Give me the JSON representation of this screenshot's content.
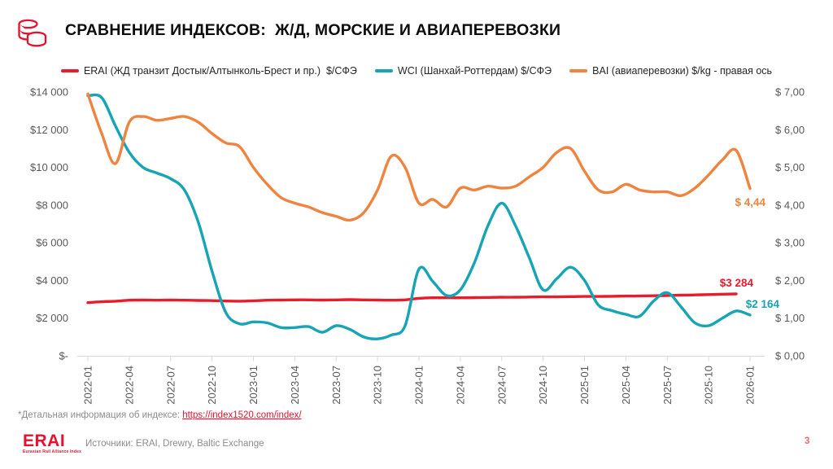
{
  "header": {
    "title": "СРАВНЕНИЕ ИНДЕКСОВ:  Ж/Д, МОРСКИЕ И АВИАПЕРЕВОЗКИ",
    "icon": "coins-icon"
  },
  "colors": {
    "erai_red": "#e71d2c",
    "wci_teal": "#17a4b4",
    "bai_orange": "#ef8440",
    "axis_text": "#595959",
    "grid": "#d9d9d9",
    "brand_red": "#e8112d",
    "page_number_red": "#f0666e"
  },
  "legend": {
    "items": [
      {
        "id": "erai",
        "label": "ERAI (ЖД транзит Достык/Алтынколь-Брест и пр.)  $/СФЭ",
        "color": "#e71d2c"
      },
      {
        "id": "wci",
        "label": "WCI (Шанхай-Роттердам) $/СФЭ",
        "color": "#17a4b4"
      },
      {
        "id": "bai",
        "label": "BAI (авиаперевозки) $/kg - правая ось",
        "color": "#ef8440"
      }
    ]
  },
  "chart_data": {
    "type": "line",
    "title": "СРАВНЕНИЕ ИНДЕКСОВ: Ж/Д, МОРСКИЕ И АВИАПЕРЕВОЗКИ",
    "x": [
      "2022-01",
      "2022-02",
      "2022-03",
      "2022-04",
      "2022-05",
      "2022-06",
      "2022-07",
      "2022-08",
      "2022-09",
      "2022-10",
      "2022-11",
      "2022-12",
      "2023-01",
      "2023-02",
      "2023-03",
      "2023-04",
      "2023-05",
      "2023-06",
      "2023-07",
      "2023-08",
      "2023-09",
      "2023-10",
      "2023-11",
      "2023-12",
      "2024-01",
      "2024-02",
      "2024-03",
      "2024-04",
      "2024-05",
      "2024-06",
      "2024-07",
      "2024-08",
      "2024-09",
      "2024-10",
      "2024-11",
      "2024-12",
      "2025-01",
      "2025-02",
      "2025-03",
      "2025-04",
      "2025-05",
      "2025-06",
      "2025-07",
      "2025-08",
      "2025-09",
      "2025-10",
      "2025-11",
      "2025-12",
      "2026-01"
    ],
    "x_tick_labels": [
      "2022-01",
      "2022-04",
      "2022-07",
      "2022-10",
      "2023-01",
      "2023-04",
      "2023-07",
      "2023-10",
      "2024-01",
      "2024-04",
      "2024-07",
      "2024-10",
      "2025-01",
      "2025-04",
      "2025-07",
      "2025-10",
      "2026-01"
    ],
    "left_axis": {
      "min": 0,
      "max": 14000,
      "labels": [
        "$-",
        "$2 000",
        "$4 000",
        "$6 000",
        "$8 000",
        "$10 000",
        "$12 000",
        "$14 000"
      ]
    },
    "right_axis": {
      "min": 0,
      "max": 7,
      "labels": [
        "$ 0,00",
        "$ 1,00",
        "$ 2,00",
        "$ 3,00",
        "$ 4,00",
        "$ 5,00",
        "$ 6,00",
        "$ 7,00"
      ]
    },
    "legend_position": "top",
    "grid": "off",
    "series": [
      {
        "name": "ERAI (ЖД транзит Достык/Алтынколь-Брест и пр.) $/СФЭ",
        "axis": "left",
        "color": "#e71d2c",
        "values": [
          2820,
          2870,
          2900,
          2950,
          2960,
          2950,
          2960,
          2950,
          2940,
          2930,
          2910,
          2900,
          2920,
          2950,
          2960,
          2970,
          2970,
          2960,
          2970,
          2980,
          2970,
          2960,
          2950,
          2970,
          3050,
          3080,
          3080,
          3080,
          3090,
          3100,
          3110,
          3110,
          3120,
          3130,
          3130,
          3140,
          3150,
          3150,
          3160,
          3170,
          3180,
          3190,
          3200,
          3220,
          3230,
          3250,
          3270,
          3284,
          null
        ]
      },
      {
        "name": "WCI (Шанхай-Роттердам) $/СФЭ",
        "axis": "left",
        "color": "#17a4b4",
        "values": [
          13800,
          13700,
          12200,
          10800,
          10000,
          9700,
          9400,
          8800,
          7100,
          4500,
          2300,
          1700,
          1800,
          1750,
          1500,
          1500,
          1550,
          1250,
          1600,
          1400,
          1000,
          900,
          1100,
          1600,
          4600,
          3950,
          3200,
          3500,
          4900,
          6900,
          8100,
          6900,
          5200,
          3500,
          4100,
          4700,
          4000,
          2700,
          2400,
          2200,
          2100,
          2900,
          3350,
          2600,
          1750,
          1600,
          2000,
          2380,
          2164
        ]
      },
      {
        "name": "BAI (авиаперевозки) $/kg - правая ось",
        "axis": "right",
        "color": "#ef8440",
        "values": [
          6.95,
          5.9,
          5.1,
          6.2,
          6.35,
          6.25,
          6.3,
          6.35,
          6.2,
          5.9,
          5.65,
          5.55,
          5.0,
          4.55,
          4.2,
          4.05,
          3.95,
          3.8,
          3.7,
          3.6,
          3.8,
          4.4,
          5.3,
          5.0,
          4.05,
          4.15,
          3.95,
          4.45,
          4.4,
          4.5,
          4.45,
          4.5,
          4.75,
          5.0,
          5.4,
          5.5,
          4.9,
          4.4,
          4.35,
          4.55,
          4.4,
          4.35,
          4.35,
          4.25,
          4.45,
          4.8,
          5.2,
          5.45,
          4.44
        ]
      }
    ],
    "annotations": [
      {
        "series": 2,
        "text": "$ 4,44",
        "color": "#ef8440"
      },
      {
        "series": 0,
        "text": "$3 284",
        "color": "#e71d2c"
      },
      {
        "series": 1,
        "text": "$2 164",
        "color": "#17a4b4"
      }
    ]
  },
  "footer": {
    "footnote_prefix": "*Детальная информация об индексе: ",
    "footnote_link": "https://index1520.com/index/",
    "logo_text": "ERAI",
    "logo_tagline": "Eurasian Rail Alliance Index",
    "sources": "Источники: ERAI, Drewry, Baltic Exchange",
    "page_number": "3"
  }
}
